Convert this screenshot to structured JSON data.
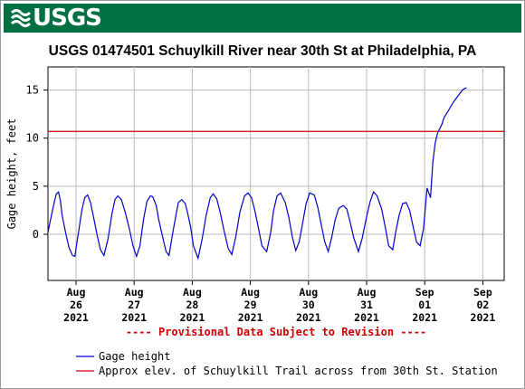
{
  "header": {
    "logo_text": "USGS",
    "brand_color": "#006f41"
  },
  "chart_data": {
    "type": "line",
    "title": "USGS 01474501 Schuylkill River near 30th St at Philadelphia, PA",
    "ylabel": "Gage height, feet",
    "xlabel": "",
    "ylim": [
      -4.8,
      17.4
    ],
    "yticks": [
      0,
      5,
      10,
      15
    ],
    "grid": true,
    "x_ticks": [
      {
        "month": "Aug",
        "day": "26",
        "year": "2021"
      },
      {
        "month": "Aug",
        "day": "27",
        "year": "2021"
      },
      {
        "month": "Aug",
        "day": "28",
        "year": "2021"
      },
      {
        "month": "Aug",
        "day": "29",
        "year": "2021"
      },
      {
        "month": "Aug",
        "day": "30",
        "year": "2021"
      },
      {
        "month": "Aug",
        "day": "31",
        "year": "2021"
      },
      {
        "month": "Sep",
        "day": "01",
        "year": "2021"
      },
      {
        "month": "Sep",
        "day": "02",
        "year": "2021"
      }
    ],
    "provisional_note": "---- Provisional Data Subject to Revision ----",
    "reference_line": {
      "name": "Approx elev. of Schuylkill Trail across from 30th St. Station",
      "value": 10.7,
      "color": "#cc0000"
    },
    "series": [
      {
        "name": "Gage height",
        "color": "#0000cc",
        "x_unit": "days since Aug 26 2021 00:00",
        "x": [
          -0.5,
          -0.44,
          -0.38,
          -0.34,
          -0.3,
          -0.27,
          -0.24,
          -0.18,
          -0.12,
          -0.06,
          -0.02,
          0.05,
          0.1,
          0.15,
          0.2,
          0.25,
          0.3,
          0.36,
          0.42,
          0.48,
          0.55,
          0.62,
          0.67,
          0.72,
          0.78,
          0.85,
          0.92,
          0.98,
          1.04,
          1.1,
          1.16,
          1.22,
          1.28,
          1.32,
          1.38,
          1.42,
          1.48,
          1.55,
          1.6,
          1.66,
          1.72,
          1.76,
          1.82,
          1.88,
          1.92,
          1.97,
          2.02,
          2.1,
          2.17,
          2.24,
          2.31,
          2.36,
          2.42,
          2.48,
          2.55,
          2.62,
          2.68,
          2.75,
          2.82,
          2.9,
          2.96,
          3.02,
          3.08,
          3.14,
          3.2,
          3.28,
          3.35,
          3.4,
          3.46,
          3.52,
          3.6,
          3.66,
          3.72,
          3.78,
          3.84,
          3.9,
          3.96,
          4.02,
          4.1,
          4.16,
          4.22,
          4.28,
          4.34,
          4.4,
          4.46,
          4.52,
          4.6,
          4.66,
          4.72,
          4.78,
          4.86,
          4.92,
          5.0,
          5.06,
          5.12,
          5.18,
          5.26,
          5.32,
          5.38,
          5.45,
          5.5,
          5.56,
          5.62,
          5.68,
          5.74,
          5.8,
          5.86,
          5.92,
          5.98,
          6.04,
          6.1,
          6.14,
          6.18,
          6.22,
          6.26,
          6.3,
          6.32,
          6.34,
          6.36,
          6.38,
          6.4,
          6.42,
          6.46,
          6.5,
          6.55,
          6.6,
          6.65,
          6.7,
          6.72
        ],
        "y": [
          0.2,
          1.5,
          3.2,
          4.2,
          4.4,
          3.5,
          2.0,
          0.2,
          -1.4,
          -2.2,
          -2.3,
          0.5,
          2.5,
          3.8,
          4.1,
          3.3,
          1.8,
          0.0,
          -1.6,
          -2.2,
          -0.5,
          2.2,
          3.6,
          4.0,
          3.6,
          2.2,
          0.5,
          -1.2,
          -2.3,
          -1.2,
          1.5,
          3.4,
          4.0,
          3.9,
          3.0,
          1.6,
          0.0,
          -1.8,
          -2.2,
          0.0,
          2.0,
          3.3,
          3.6,
          3.2,
          2.2,
          0.8,
          -1.2,
          -2.5,
          -0.5,
          2.0,
          3.8,
          4.2,
          3.7,
          2.3,
          0.3,
          -1.5,
          -2.1,
          -0.2,
          2.3,
          4.0,
          4.3,
          3.8,
          2.4,
          0.6,
          -1.2,
          -1.8,
          0.2,
          2.5,
          4.0,
          4.3,
          3.3,
          1.8,
          -0.2,
          -1.7,
          -0.8,
          1.2,
          3.2,
          4.3,
          4.1,
          2.8,
          1.0,
          -0.8,
          -1.8,
          -0.3,
          1.5,
          2.7,
          3.0,
          2.6,
          1.2,
          -0.4,
          -1.8,
          -0.5,
          1.8,
          3.4,
          4.4,
          4.0,
          2.6,
          0.8,
          -1.2,
          -1.6,
          0.2,
          2.0,
          3.2,
          3.3,
          2.5,
          0.8,
          -0.8,
          -1.2,
          0.6,
          4.8,
          3.8,
          7.5,
          9.5,
          10.5,
          11.0,
          11.5,
          11.9,
          12.2,
          12.4,
          12.6,
          12.8,
          13.0,
          13.4,
          13.8,
          14.2,
          14.6,
          15.0,
          15.2,
          15.2
        ]
      }
    ]
  }
}
